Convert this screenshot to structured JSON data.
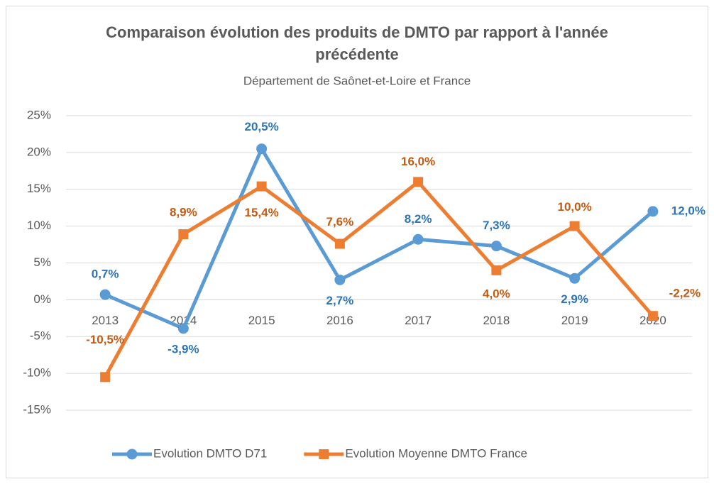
{
  "chart_data": {
    "type": "line",
    "title": "Comparaison évolution des produits de DMTO par rapport à l'année précédente",
    "subtitle": "Département de Saônet-et-Loire et France",
    "categories": [
      "2013",
      "2014",
      "2015",
      "2016",
      "2017",
      "2018",
      "2019",
      "2020"
    ],
    "series": [
      {
        "name": "Evolution DMTO D71",
        "color": "#5b9bd5",
        "label_color": "#2e75b6",
        "marker": "circle",
        "values": [
          0.7,
          -3.9,
          20.5,
          2.7,
          8.2,
          7.3,
          2.9,
          12.0
        ],
        "value_labels": [
          "0,7%",
          "-3,9%",
          "20,5%",
          "2,7%",
          "8,2%",
          "7,3%",
          "2,9%",
          "12,0%"
        ]
      },
      {
        "name": "Evolution Moyenne DMTO France",
        "color": "#ed7d31",
        "label_color": "#c55a11",
        "marker": "square",
        "values": [
          -10.5,
          8.9,
          15.4,
          7.6,
          16.0,
          4.0,
          10.0,
          -2.2
        ],
        "value_labels": [
          "-10,5%",
          "8,9%",
          "15,4%",
          "7,6%",
          "16,0%",
          "4,0%",
          "10,0%",
          "-2,2%"
        ]
      }
    ],
    "ylim": [
      -15,
      25
    ],
    "yticks": [
      {
        "value": -15,
        "label": "-15%"
      },
      {
        "value": -10,
        "label": "-10%"
      },
      {
        "value": -5,
        "label": "-5%"
      },
      {
        "value": 0,
        "label": "0%"
      },
      {
        "value": 5,
        "label": "5%"
      },
      {
        "value": 10,
        "label": "10%"
      },
      {
        "value": 15,
        "label": "15%"
      },
      {
        "value": 20,
        "label": "20%"
      },
      {
        "value": 25,
        "label": "25%"
      }
    ],
    "grid": true,
    "legend": "bottom"
  }
}
